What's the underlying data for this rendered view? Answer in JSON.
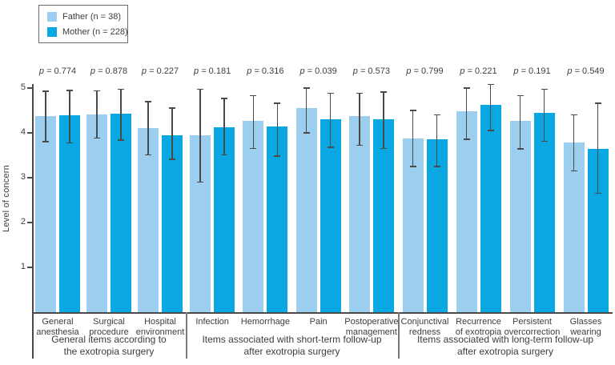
{
  "figure": {
    "ylabel": "Level of concern"
  },
  "chart_data": {
    "type": "bar",
    "title": "",
    "xlabel": "",
    "ylabel": "Level of concern",
    "ylim": [
      0,
      5
    ],
    "yticks": [
      "1",
      "2",
      "3",
      "4",
      "5"
    ],
    "grid": false,
    "legend_position": "top-left",
    "p_symbol": "p",
    "error_bars": "95% CI whiskers with caps",
    "colors": {
      "father": "#9BCEEF",
      "mother": "#09A8E2",
      "axis": "#4a4a4a"
    },
    "legend": [
      {
        "label": "Father (n = 38)",
        "series": "father"
      },
      {
        "label": "Mother (n = 228)",
        "series": "mother"
      }
    ],
    "groups": [
      {
        "label_lines": [
          "General items according to",
          "the exotropia surgery"
        ],
        "pairs": [
          {
            "category_lines": [
              "General",
              "anesthesia"
            ],
            "p": "= 0.774",
            "father": {
              "value": 4.37,
              "lo": 3.8,
              "hi": 4.93
            },
            "mother": {
              "value": 4.4,
              "lo": 3.78,
              "hi": 4.95
            }
          },
          {
            "category_lines": [
              "Surgical",
              "procedure"
            ],
            "p": "= 0.878",
            "father": {
              "value": 4.41,
              "lo": 3.88,
              "hi": 4.94
            },
            "mother": {
              "value": 4.43,
              "lo": 3.84,
              "hi": 4.97
            }
          },
          {
            "category_lines": [
              "Hospital",
              "environment"
            ],
            "p": "= 0.227",
            "father": {
              "value": 4.1,
              "lo": 3.51,
              "hi": 4.7
            },
            "mother": {
              "value": 3.95,
              "lo": 3.41,
              "hi": 4.55
            }
          }
        ]
      },
      {
        "label_lines": [
          "Items associated with short-term follow-up",
          "after exotropia surgery"
        ],
        "pairs": [
          {
            "category_lines": [
              "Infection"
            ],
            "p": "= 0.181",
            "father": {
              "value": 3.95,
              "lo": 2.9,
              "hi": 4.97
            },
            "mother": {
              "value": 4.13,
              "lo": 3.51,
              "hi": 4.77
            }
          },
          {
            "category_lines": [
              "Hemorrhage"
            ],
            "p": "= 0.316",
            "father": {
              "value": 4.27,
              "lo": 3.65,
              "hi": 4.83
            },
            "mother": {
              "value": 4.14,
              "lo": 3.48,
              "hi": 4.66
            }
          },
          {
            "category_lines": [
              "Pain"
            ],
            "p": "= 0.039",
            "father": {
              "value": 4.55,
              "lo": 4.0,
              "hi": 5.0
            },
            "mother": {
              "value": 4.31,
              "lo": 3.68,
              "hi": 4.88
            }
          },
          {
            "category_lines": [
              "Postoperative",
              "management"
            ],
            "p": "= 0.573",
            "father": {
              "value": 4.38,
              "lo": 3.72,
              "hi": 4.88
            },
            "mother": {
              "value": 4.31,
              "lo": 3.65,
              "hi": 4.91
            }
          }
        ]
      },
      {
        "label_lines": [
          "Items associated with long-term follow-up",
          "after exotropia surgery"
        ],
        "pairs": [
          {
            "category_lines": [
              "Conjunctival",
              "redness"
            ],
            "p": "= 0.799",
            "father": {
              "value": 3.88,
              "lo": 3.25,
              "hi": 4.5
            },
            "mother": {
              "value": 3.85,
              "lo": 3.25,
              "hi": 4.4
            }
          },
          {
            "category_lines": [
              "Recurrence",
              "of exotropia"
            ],
            "p": "= 0.221",
            "father": {
              "value": 4.49,
              "lo": 3.86,
              "hi": 5.0
            },
            "mother": {
              "value": 4.63,
              "lo": 4.05,
              "hi": 5.08
            }
          },
          {
            "category_lines": [
              "Persistent",
              "overcorrection"
            ],
            "p": "= 0.191",
            "father": {
              "value": 4.27,
              "lo": 3.64,
              "hi": 4.83
            },
            "mother": {
              "value": 4.45,
              "lo": 3.81,
              "hi": 4.97
            }
          },
          {
            "category_lines": [
              "Glasses",
              "wearing"
            ],
            "p": "= 0.549",
            "father": {
              "value": 3.79,
              "lo": 3.15,
              "hi": 4.4
            },
            "mother": {
              "value": 3.65,
              "lo": 2.65,
              "hi": 4.66
            }
          }
        ]
      }
    ]
  }
}
